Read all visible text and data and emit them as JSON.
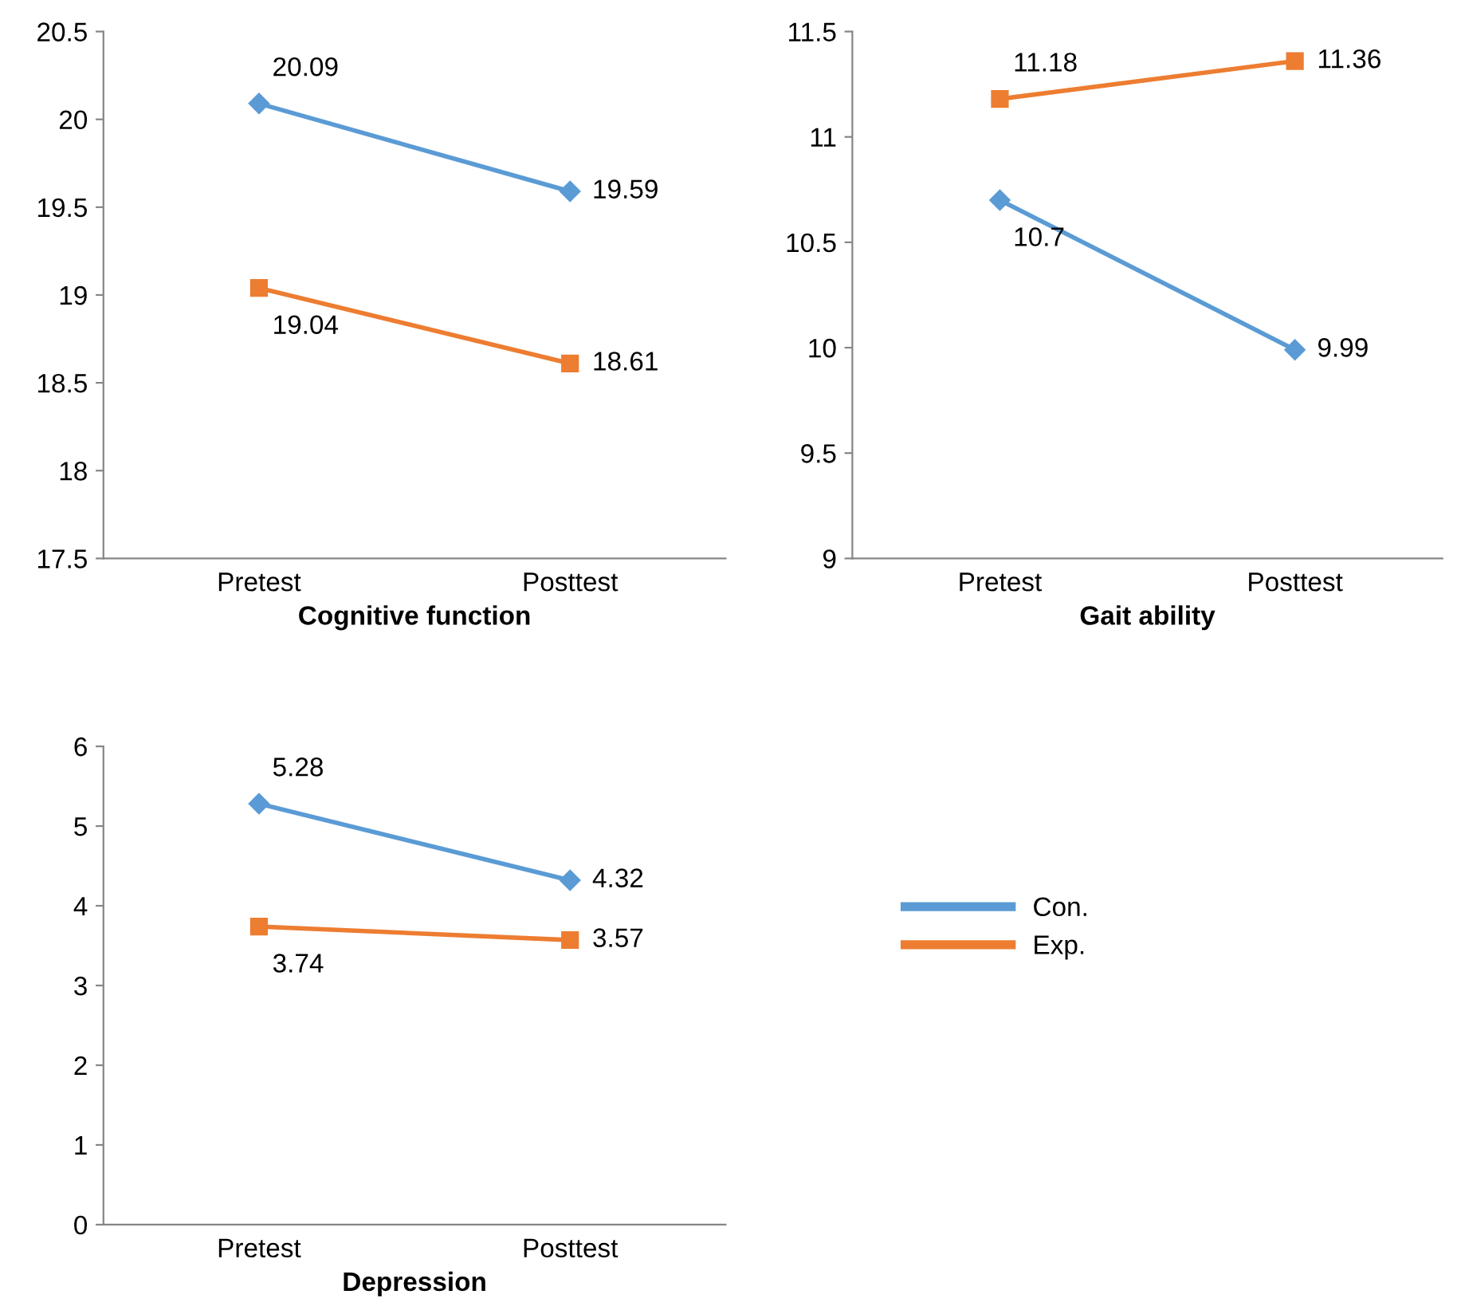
{
  "chart_data": [
    {
      "type": "line",
      "xlabel": "Cognitive function",
      "categories": [
        "Pretest",
        "Posttest"
      ],
      "ylim": [
        17.5,
        20.5
      ],
      "yticks": [
        17.5,
        18,
        18.5,
        19,
        19.5,
        20,
        20.5
      ],
      "grid": false,
      "legend": false,
      "data_labels": true,
      "series": [
        {
          "color": "#5b9bd5",
          "marker": "diamond",
          "values": [
            20.09,
            19.59
          ]
        },
        {
          "color": "#ed7d31",
          "marker": "square",
          "values": [
            19.04,
            18.61
          ]
        }
      ]
    },
    {
      "type": "line",
      "xlabel": "Gait ability",
      "categories": [
        "Pretest",
        "Posttest"
      ],
      "ylim": [
        9,
        11.5
      ],
      "yticks": [
        9,
        9.5,
        10,
        10.5,
        11,
        11.5
      ],
      "grid": false,
      "legend": false,
      "data_labels": true,
      "series": [
        {
          "color": "#5b9bd5",
          "marker": "diamond",
          "values": [
            10.7,
            9.99
          ]
        },
        {
          "color": "#ed7d31",
          "marker": "square",
          "values": [
            11.18,
            11.36
          ]
        }
      ]
    },
    {
      "type": "line",
      "xlabel": "Depression",
      "categories": [
        "Pretest",
        "Posttest"
      ],
      "ylim": [
        0,
        6
      ],
      "yticks": [
        0,
        1,
        2,
        3,
        4,
        5,
        6
      ],
      "grid": false,
      "legend": "right",
      "data_labels": true,
      "series": [
        {
          "name": "Con.",
          "color": "#5b9bd5",
          "marker": "diamond",
          "values": [
            5.28,
            4.32
          ]
        },
        {
          "name": "Exp.",
          "color": "#ed7d31",
          "marker": "square",
          "values": [
            3.74,
            3.57
          ]
        }
      ]
    }
  ]
}
